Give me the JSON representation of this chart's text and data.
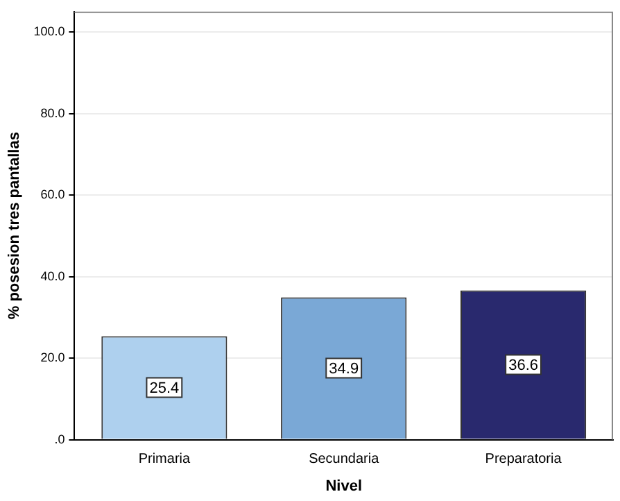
{
  "chart_data": {
    "type": "bar",
    "xlabel": "Nivel",
    "ylabel": "% posesion tres pantallas",
    "categories": [
      "Primaria",
      "Secundaria",
      "Preparatoria"
    ],
    "values": [
      25.4,
      34.9,
      36.6
    ],
    "colors": [
      "#aed0ee",
      "#7aa8d6",
      "#29296e"
    ],
    "ylim": [
      0,
      105
    ],
    "yticks": [
      {
        "value": 0,
        "label": ".0"
      },
      {
        "value": 20,
        "label": "20.0"
      },
      {
        "value": 40,
        "label": "40.0"
      },
      {
        "value": 60,
        "label": "60.0"
      },
      {
        "value": 80,
        "label": "80.0"
      },
      {
        "value": 100,
        "label": "100.0"
      }
    ],
    "grid": "y",
    "data_labels": true,
    "legend": false
  }
}
